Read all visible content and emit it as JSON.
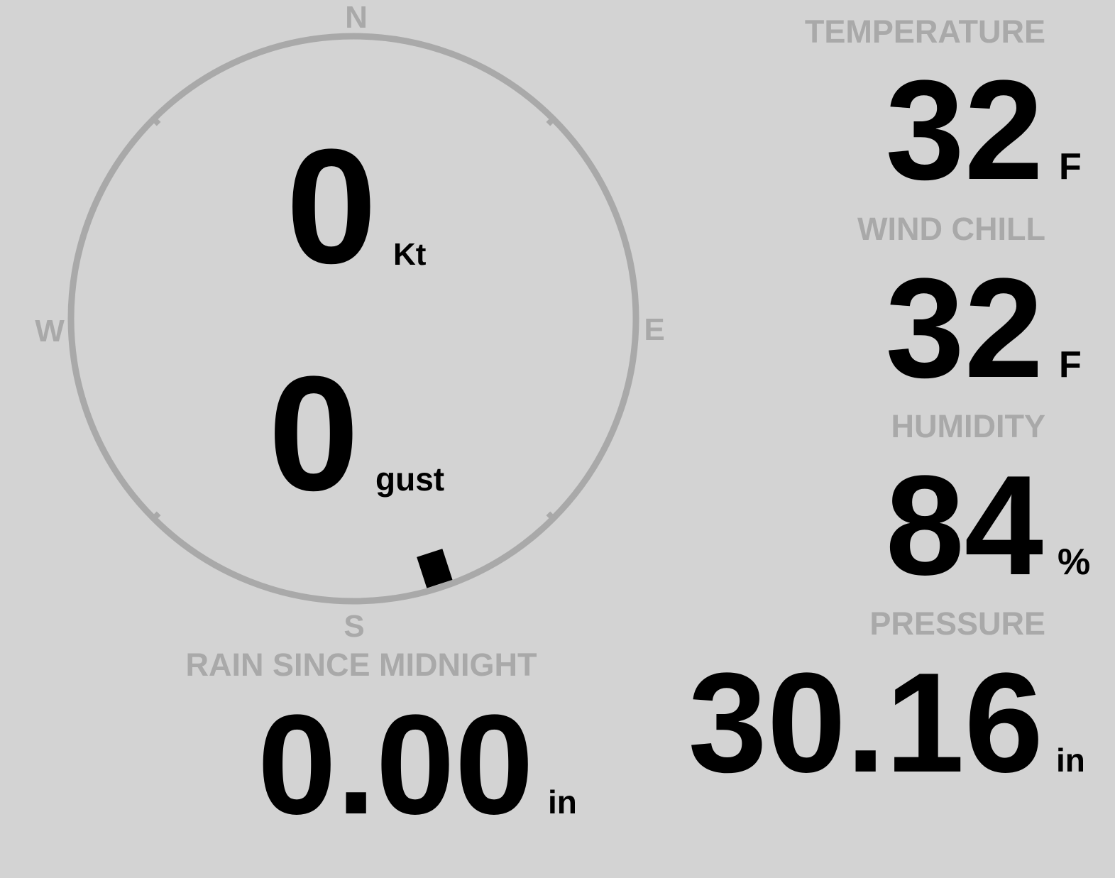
{
  "colors": {
    "background": "#d3d3d3",
    "muted": "#a9a9a9",
    "value": "#000000"
  },
  "compass": {
    "north": "N",
    "south": "S",
    "east": "E",
    "west": "W",
    "wind_direction_deg": 162,
    "wind_speed": "0",
    "wind_speed_unit": "Kt",
    "gust": "0",
    "gust_unit": "gust"
  },
  "temperature": {
    "label": "TEMPERATURE",
    "value": "32",
    "unit": "F"
  },
  "wind_chill": {
    "label": "WIND CHILL",
    "value": "32",
    "unit": "F"
  },
  "humidity": {
    "label": "HUMIDITY",
    "value": "84",
    "unit": "%"
  },
  "rain": {
    "label": "RAIN SINCE MIDNIGHT",
    "value": "0.00",
    "unit": "in"
  },
  "pressure": {
    "label": "PRESSURE",
    "value": "30.16",
    "unit": "in"
  }
}
